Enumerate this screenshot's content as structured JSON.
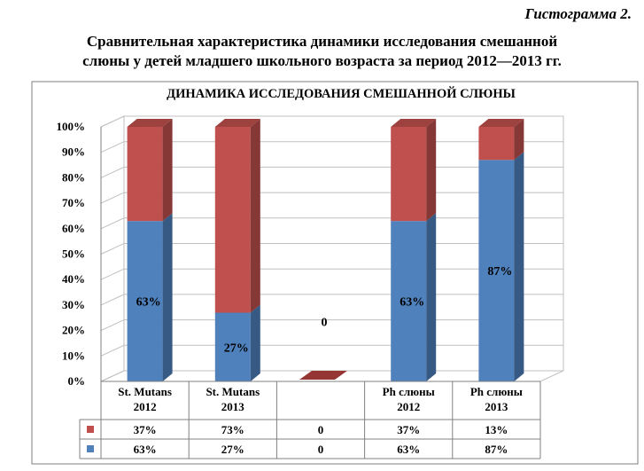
{
  "caption": "Гистограмма 2.",
  "heading": {
    "line1": "Сравнительная характеристика динамики исследования смешанной",
    "line2": "слюны у детей младшего школьного возраста за период 2012—2013 гг."
  },
  "chart_data": {
    "type": "bar",
    "stacked": true,
    "percent": true,
    "title": "ДИНАМИКА ИССЛЕДОВАНИЯ СМЕШАННОЙ СЛЮНЫ",
    "categories": [
      [
        "St. Mutans",
        "2012"
      ],
      [
        "St. Mutans",
        "2013"
      ],
      [
        ""
      ],
      [
        "Ph слюны",
        "2012"
      ],
      [
        "Ph слюны",
        "2013"
      ]
    ],
    "series": [
      {
        "values": [
          63,
          27,
          0,
          63,
          87
        ],
        "labels": [
          "63%",
          "27%",
          "0",
          "63%",
          "87%"
        ],
        "table_labels": [
          "63%",
          "27%",
          "0",
          "63%",
          "87%"
        ],
        "color": "#4f81bd"
      },
      {
        "values": [
          37,
          73,
          0,
          37,
          13
        ],
        "labels": [
          "",
          "",
          "",
          "",
          ""
        ],
        "table_labels": [
          "37%",
          "73%",
          "0",
          "37%",
          "13%"
        ],
        "color": "#c0504d"
      }
    ],
    "y_ticks": [
      "0%",
      "10%",
      "20%",
      "30%",
      "40%",
      "50%",
      "60%",
      "70%",
      "80%",
      "90%",
      "100%"
    ],
    "ylim": [
      0,
      100
    ],
    "grid": true,
    "legend": "data-table-below"
  }
}
